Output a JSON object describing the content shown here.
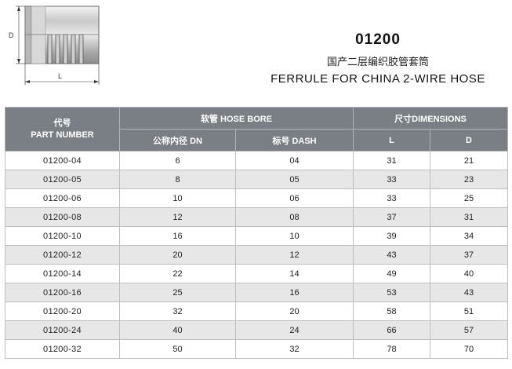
{
  "drawing": {
    "dim_d_label": "D",
    "dim_l_label": "L"
  },
  "header": {
    "part_number": "01200",
    "title_cn": "国产二层编织胶管套筒",
    "title_en": "FERRULE FOR  CHINA 2-WIRE HOSE"
  },
  "table": {
    "col_part_cn": "代号",
    "col_part_en": "PART NUMBER",
    "group_hose_bore": "软管 HOSE BORE",
    "group_dimensions": "尺寸DIMENSIONS",
    "col_dn": "公称内径 DN",
    "col_dash": "标号 DASH",
    "col_l": "L",
    "col_d": "D",
    "rows": [
      {
        "part": "01200-04",
        "dn": "6",
        "dash": "04",
        "l": "31",
        "d": "21"
      },
      {
        "part": "01200-05",
        "dn": "8",
        "dash": "05",
        "l": "33",
        "d": "23"
      },
      {
        "part": "01200-06",
        "dn": "10",
        "dash": "06",
        "l": "33",
        "d": "25"
      },
      {
        "part": "01200-08",
        "dn": "12",
        "dash": "08",
        "l": "37",
        "d": "31"
      },
      {
        "part": "01200-10",
        "dn": "16",
        "dash": "10",
        "l": "39",
        "d": "34"
      },
      {
        "part": "01200-12",
        "dn": "20",
        "dash": "12",
        "l": "43",
        "d": "37"
      },
      {
        "part": "01200-14",
        "dn": "22",
        "dash": "14",
        "l": "49",
        "d": "40"
      },
      {
        "part": "01200-16",
        "dn": "25",
        "dash": "16",
        "l": "53",
        "d": "43"
      },
      {
        "part": "01200-20",
        "dn": "32",
        "dash": "20",
        "l": "58",
        "d": "51"
      },
      {
        "part": "01200-24",
        "dn": "40",
        "dash": "24",
        "l": "66",
        "d": "57"
      },
      {
        "part": "01200-32",
        "dn": "50",
        "dash": "32",
        "l": "78",
        "d": "70"
      }
    ]
  }
}
